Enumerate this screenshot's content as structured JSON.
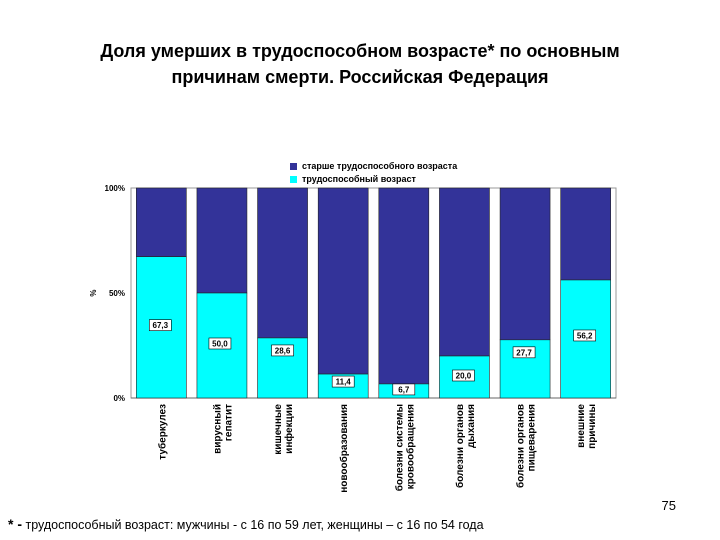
{
  "title_line1": "Доля умерших в трудоспособном возрасте* по основным",
  "title_line2": "причинам смерти. Российская Федерация",
  "page_number": "75",
  "footnote": {
    "marker": "* -",
    "text": "трудоспособный возраст: мужчины - с 16 по 59 лет, женщины – с 16 по 54 года"
  },
  "colors": {
    "older": "#333399",
    "working": "#00ffff"
  },
  "chart_data": {
    "type": "bar",
    "stacked": true,
    "percent_stacked": true,
    "ylabel": "%",
    "ylim": [
      0,
      100
    ],
    "yticks": [
      "0%",
      "50%",
      "100%"
    ],
    "legend_position": "top",
    "categories": [
      [
        "туберкулез"
      ],
      [
        "вирусный",
        "гепатит"
      ],
      [
        "кишечные",
        "инфекции"
      ],
      [
        "новообразования"
      ],
      [
        "болезни системы",
        "кровообращения"
      ],
      [
        "болезни органов",
        "дыхания"
      ],
      [
        "болезни органов",
        "пищеварения"
      ],
      [
        "внешние",
        "причины"
      ]
    ],
    "series": [
      {
        "name": "трудоспособный возраст",
        "color": "#00ffff",
        "values": [
          67.3,
          50.0,
          28.6,
          11.4,
          6.7,
          20.0,
          27.7,
          56.2
        ],
        "labels": [
          "67,3",
          "50,0",
          "28,6",
          "11,4",
          "6,7",
          "20,0",
          "27,7",
          "56,2"
        ]
      },
      {
        "name": "старше трудоспособного возраста",
        "color": "#333399",
        "values": [
          32.7,
          50.0,
          71.4,
          88.6,
          93.3,
          80.0,
          72.3,
          43.8
        ]
      }
    ]
  }
}
